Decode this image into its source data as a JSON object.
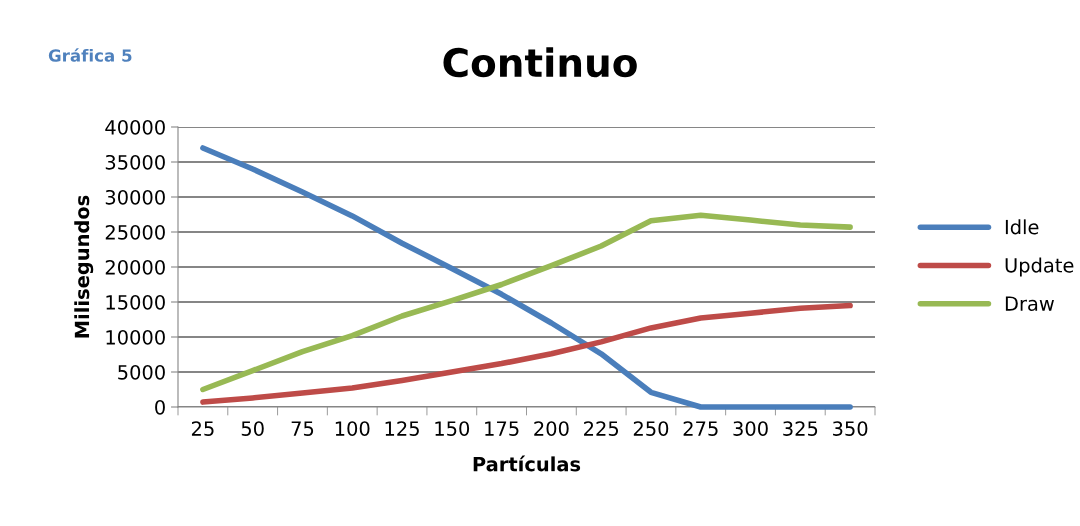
{
  "chart_data": {
    "type": "line",
    "title": "Continuo",
    "subtitle": "Gráfica 5",
    "xlabel": "Partículas",
    "ylabel": "Milisegundos",
    "categories": [
      "25",
      "50",
      "75",
      "100",
      "125",
      "150",
      "175",
      "200",
      "225",
      "250",
      "275",
      "300",
      "325",
      "350"
    ],
    "series": [
      {
        "name": "Idle",
        "color": "#4a7ebb",
        "values": [
          37000,
          34000,
          30700,
          27300,
          23400,
          19800,
          16100,
          12000,
          7600,
          2100,
          0,
          0,
          0,
          0
        ]
      },
      {
        "name": "Update",
        "color": "#be4b48",
        "values": [
          700,
          1300,
          2000,
          2700,
          3800,
          5000,
          6200,
          7600,
          9300,
          11300,
          12700,
          13400,
          14100,
          14500
        ]
      },
      {
        "name": "Draw",
        "color": "#98b954",
        "values": [
          2500,
          5200,
          7900,
          10200,
          13000,
          15200,
          17500,
          20200,
          23000,
          26600,
          27400,
          26700,
          26000,
          25700
        ]
      }
    ],
    "ylim": [
      0,
      40000
    ],
    "yticks": [
      0,
      5000,
      10000,
      15000,
      20000,
      25000,
      30000,
      35000,
      40000
    ],
    "grid": "y",
    "legend": "right",
    "marker": "none",
    "line_style": "solid"
  }
}
